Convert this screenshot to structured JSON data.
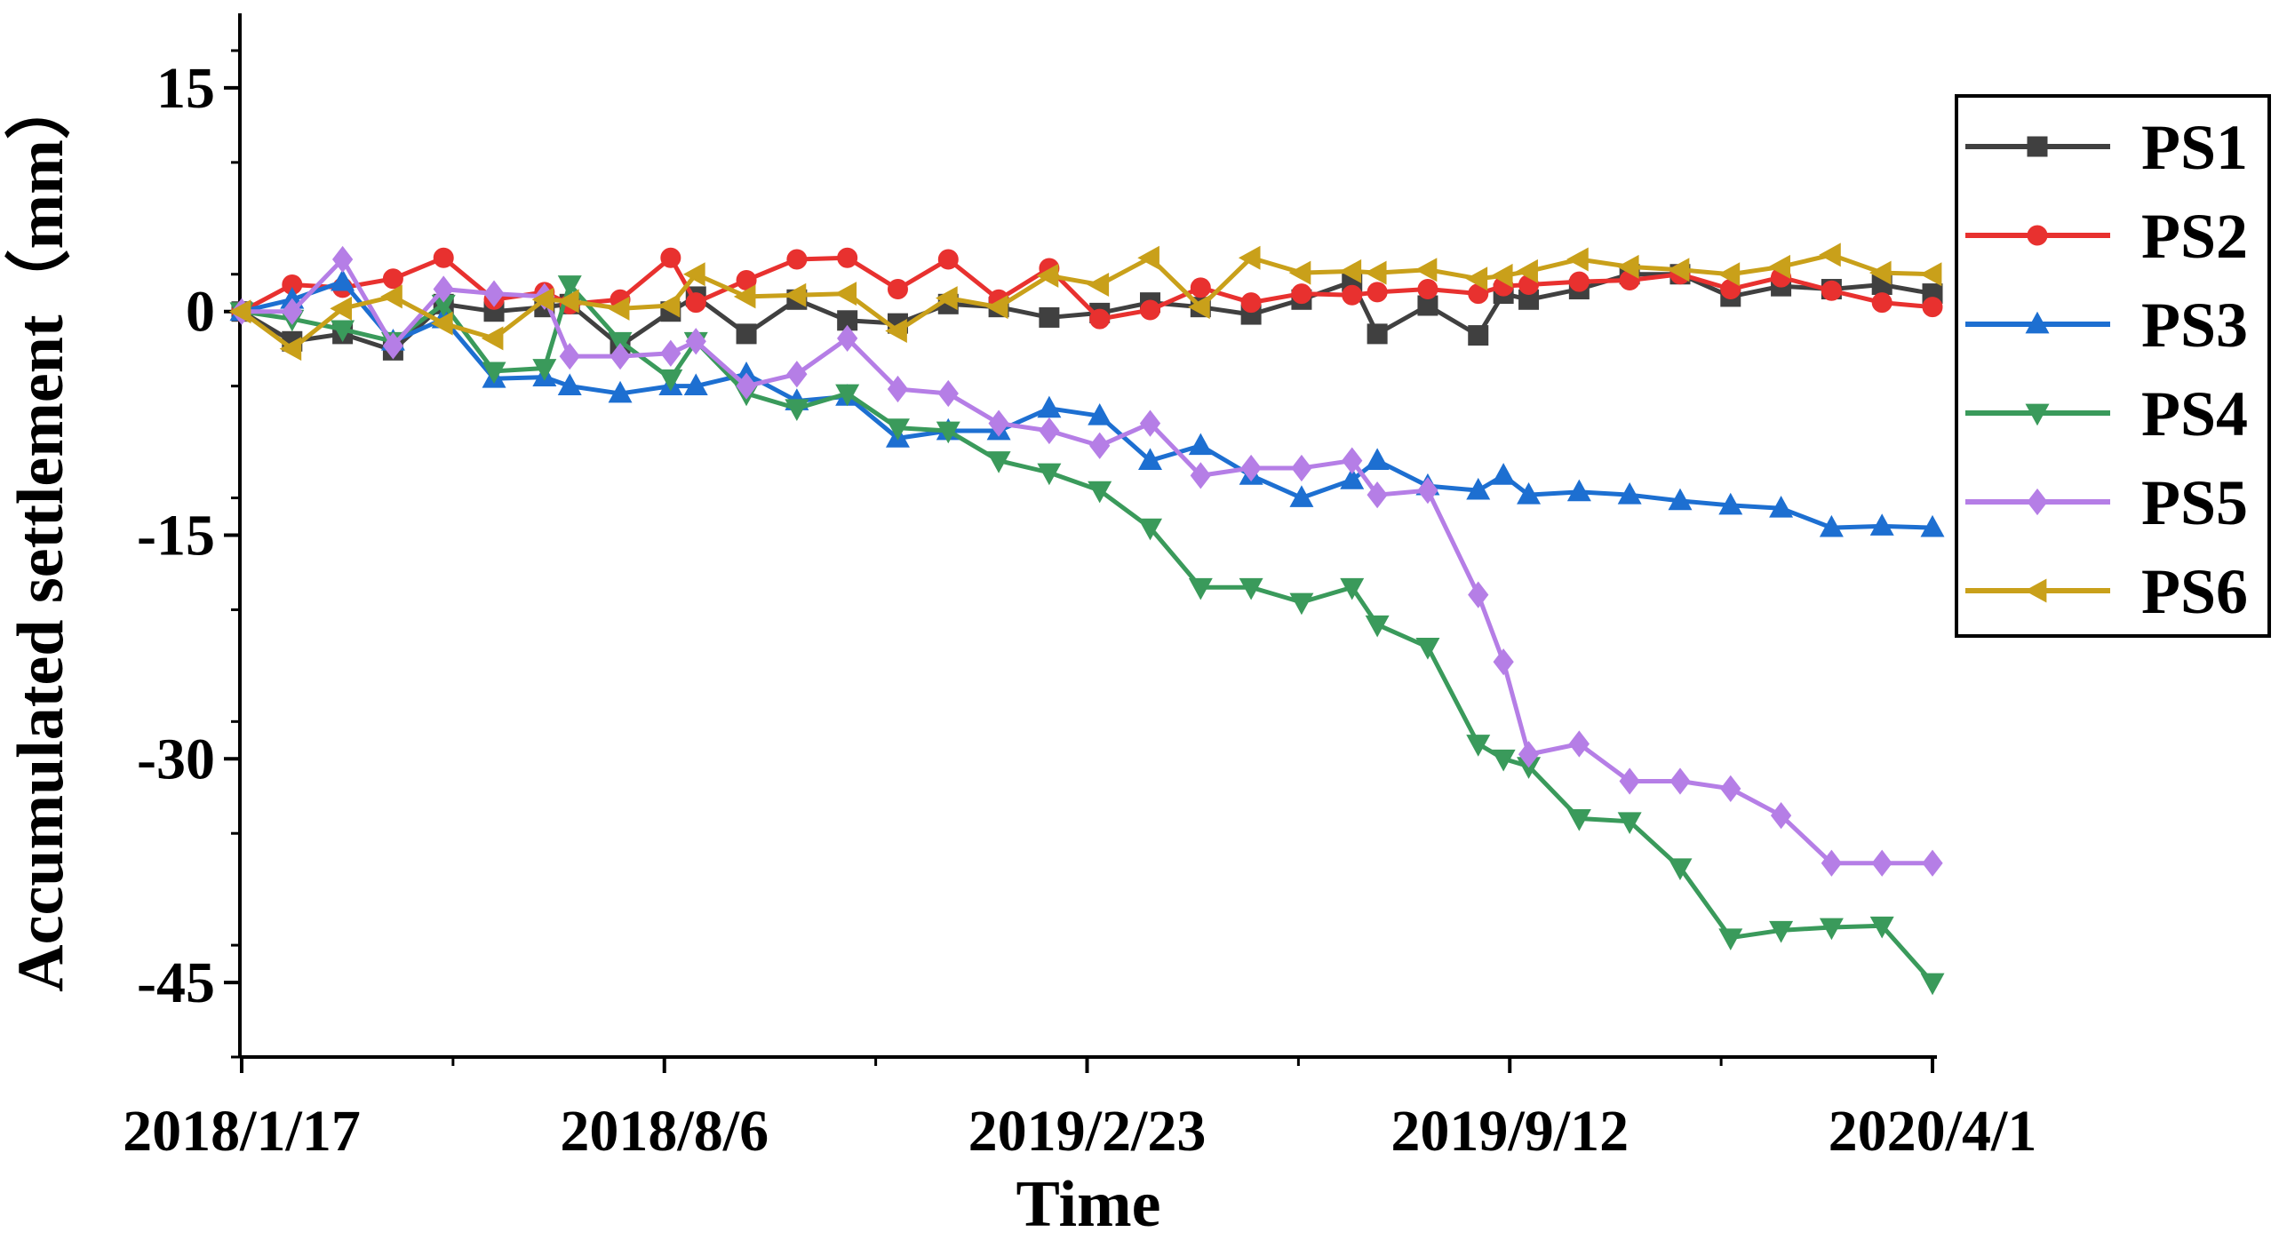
{
  "chart_data": {
    "type": "line",
    "xlabel": "Time",
    "ylabel": "Accumulated settlement（mm）",
    "x_ticks": [
      "2018/1/17",
      "2018/8/6",
      "2019/2/23",
      "2019/9/12",
      "2020/4/1"
    ],
    "y_ticks": [
      15,
      0,
      -15,
      -30,
      -45
    ],
    "xlim": [
      0,
      804
    ],
    "ylim": [
      -50,
      20
    ],
    "legend": "top-right",
    "x": [
      0,
      24,
      48,
      72,
      96,
      120,
      144,
      156,
      180,
      204,
      216,
      240,
      264,
      288,
      312,
      336,
      360,
      384,
      408,
      432,
      456,
      480,
      504,
      528,
      540,
      564,
      588,
      600,
      612,
      636,
      660,
      684,
      708,
      732,
      756,
      780,
      804
    ],
    "series": [
      {
        "name": "PS1",
        "color": "#404040",
        "marker": "square",
        "values": [
          0,
          -2,
          -1.5,
          -2.6,
          0.5,
          0,
          0.3,
          0.5,
          -2.3,
          0,
          1,
          -1.5,
          0.8,
          -0.6,
          -0.8,
          0.5,
          0.3,
          -0.4,
          -0.1,
          0.6,
          0.3,
          -0.2,
          0.8,
          2,
          -1.5,
          0.4,
          -1.6,
          1.2,
          0.8,
          1.5,
          2.5,
          2.5,
          1,
          1.7,
          1.5,
          1.8,
          1.2
        ]
      },
      {
        "name": "PS2",
        "color": "#e8312f",
        "marker": "circle",
        "values": [
          0,
          1.8,
          1.6,
          2.2,
          3.6,
          0.8,
          1.3,
          0.5,
          0.8,
          3.6,
          0.6,
          2.1,
          3.5,
          3.6,
          1.5,
          3.5,
          0.8,
          2.9,
          -0.5,
          0.1,
          1.6,
          0.6,
          1.2,
          1.1,
          1.3,
          1.5,
          1.2,
          1.7,
          1.8,
          2,
          2.1,
          2.5,
          1.5,
          2.3,
          1.4,
          0.6,
          0.3
        ]
      },
      {
        "name": "PS3",
        "color": "#1d6fd1",
        "marker": "triangle-up",
        "values": [
          0,
          0.8,
          2,
          -2,
          -0.5,
          -4.5,
          -4.4,
          -5,
          -5.5,
          -5,
          -5,
          -4.2,
          -6,
          -5.7,
          -8.5,
          -8,
          -8,
          -6.5,
          -7,
          -10,
          -9,
          -11,
          -12.5,
          -11.3,
          -10,
          -11.7,
          -12,
          -11,
          -12.3,
          -12.1,
          -12.3,
          -12.7,
          -13,
          -13.2,
          -14.5,
          -14.4,
          -14.5
        ]
      },
      {
        "name": "PS4",
        "color": "#3a9a5b",
        "marker": "triangle-down",
        "values": [
          0,
          -0.5,
          -1.2,
          -2,
          0.5,
          -4,
          -3.8,
          1.8,
          -2,
          -4.5,
          -2,
          -5.5,
          -6.5,
          -5.5,
          -7.8,
          -8,
          -10,
          -10.8,
          -12,
          -14.5,
          -18.5,
          -18.5,
          -19.5,
          -18.5,
          -21,
          -22.5,
          -29,
          -30,
          -30.5,
          -34,
          -34.2,
          -37.3,
          -42,
          -41.5,
          -41.3,
          -41.2,
          -45
        ]
      },
      {
        "name": "PS5",
        "color": "#b57ee6",
        "marker": "diamond",
        "values": [
          0,
          0,
          3.5,
          -2.3,
          1.5,
          1.2,
          1,
          -3,
          -3,
          -2.8,
          -2,
          -5,
          -4.2,
          -1.8,
          -5.2,
          -5.5,
          -7.5,
          -8,
          -9,
          -7.5,
          -11,
          -10.5,
          -10.5,
          -10,
          -12.3,
          -12,
          -19,
          -23.5,
          -29.7,
          -29,
          -31.5,
          -31.5,
          -32,
          -33.8,
          -37,
          -37,
          -37
        ]
      },
      {
        "name": "PS6",
        "color": "#c9a01a",
        "marker": "triangle-left",
        "values": [
          0,
          -2.5,
          0.2,
          1,
          -0.8,
          -1.8,
          0.8,
          0.7,
          0.2,
          0.4,
          2.5,
          1,
          1.1,
          1.2,
          -1.3,
          0.9,
          0.3,
          2.4,
          1.8,
          3.6,
          0.3,
          3.6,
          2.6,
          2.7,
          2.6,
          2.8,
          2.2,
          2.4,
          2.7,
          3.5,
          3,
          2.8,
          2.5,
          3,
          3.8,
          2.6,
          2.5
        ]
      }
    ]
  }
}
